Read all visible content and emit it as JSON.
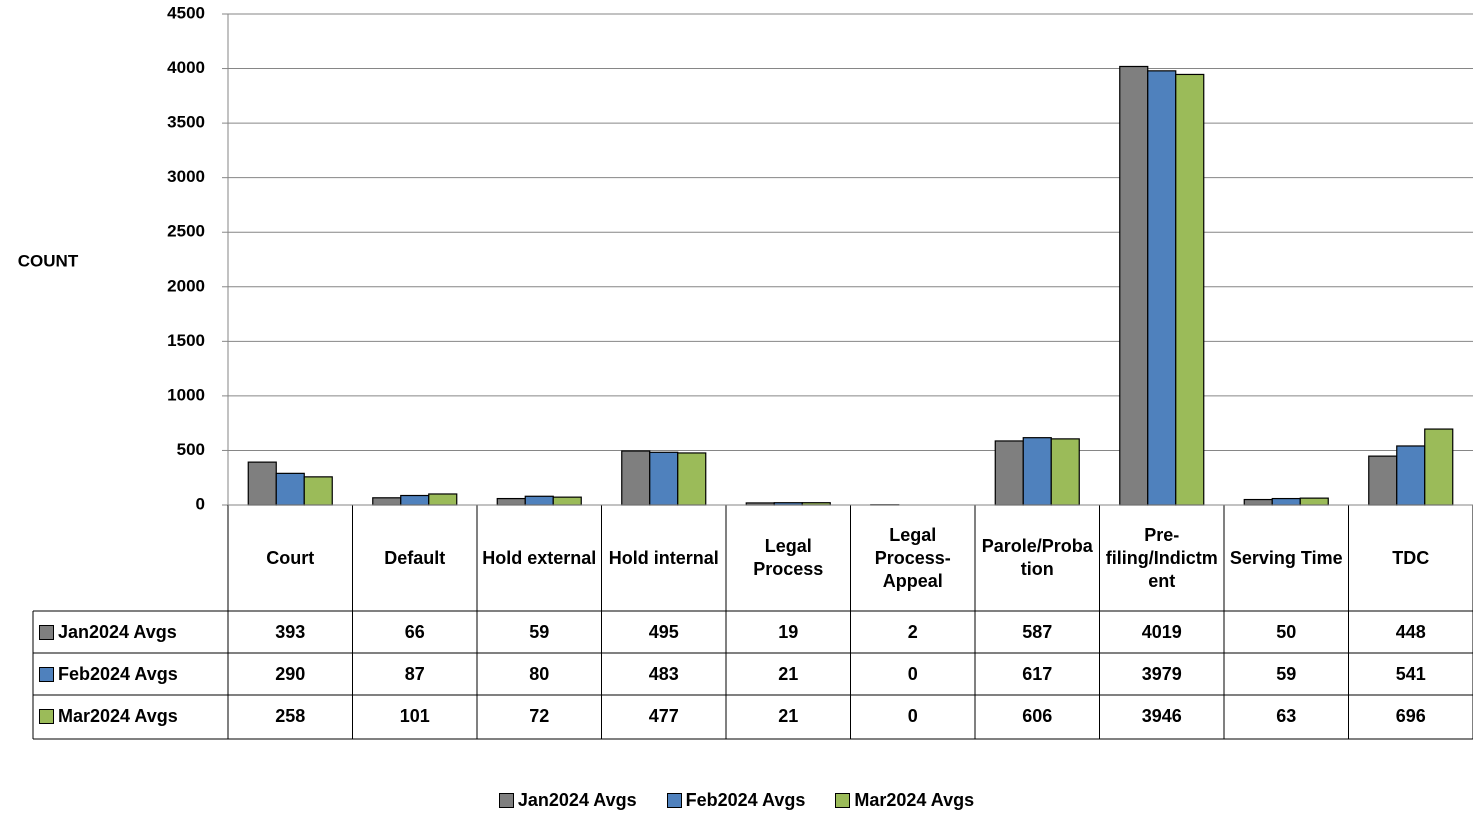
{
  "chart_data": {
    "type": "bar",
    "y_label": "COUNT",
    "categories": [
      "Court",
      "Default",
      "Hold external",
      "Hold internal",
      "Legal Process",
      "Legal Process-Appeal",
      "Parole/Probation",
      "Pre-filing/Indictment",
      "Serving Time",
      "TDC"
    ],
    "series": [
      {
        "name": "Jan2024 Avgs",
        "color": "#7f7f7f",
        "values": [
          393,
          66,
          59,
          495,
          19,
          2,
          587,
          4019,
          50,
          448
        ]
      },
      {
        "name": "Feb2024 Avgs",
        "color": "#4f81bd",
        "values": [
          290,
          87,
          80,
          483,
          21,
          0,
          617,
          3979,
          59,
          541
        ]
      },
      {
        "name": "Mar2024 Avgs",
        "color": "#9bbb59",
        "values": [
          258,
          101,
          72,
          477,
          21,
          0,
          606,
          3946,
          63,
          696
        ]
      }
    ],
    "ylim": [
      0,
      4500
    ],
    "yticks": [
      0,
      500,
      1000,
      1500,
      2000,
      2500,
      3000,
      3500,
      4000,
      4500
    ],
    "grid": true,
    "legend": "bottom"
  }
}
